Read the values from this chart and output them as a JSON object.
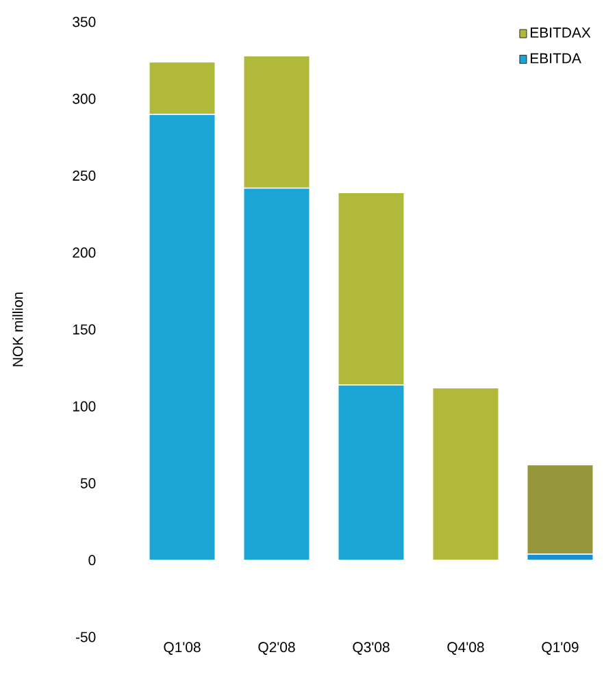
{
  "chart_data": {
    "type": "bar",
    "stacked": true,
    "ylabel": "NOK million",
    "categories": [
      "Q1'08",
      "Q2'08",
      "Q3'08",
      "Q4'08",
      "Q1'09"
    ],
    "series": [
      {
        "name": "EBITDA",
        "color": "#1aa5d4",
        "colors": [
          "#1aa5d4",
          "#1aa5d4",
          "#1aa5d4",
          "#1aa5d4",
          "#1a90d0"
        ],
        "values": [
          290,
          242,
          114,
          0,
          4
        ]
      },
      {
        "name": "EBITDAX",
        "color": "#b0b93a",
        "colors": [
          "#b0b93a",
          "#b0b93a",
          "#b0b93a",
          "#b0b93a",
          "#96963a"
        ],
        "values": [
          34,
          86,
          125,
          112,
          58
        ]
      }
    ],
    "ylim": [
      -50,
      350
    ],
    "yticks": [
      -50,
      0,
      50,
      100,
      150,
      200,
      250,
      300,
      350
    ],
    "grid": false,
    "legend": "top right"
  }
}
